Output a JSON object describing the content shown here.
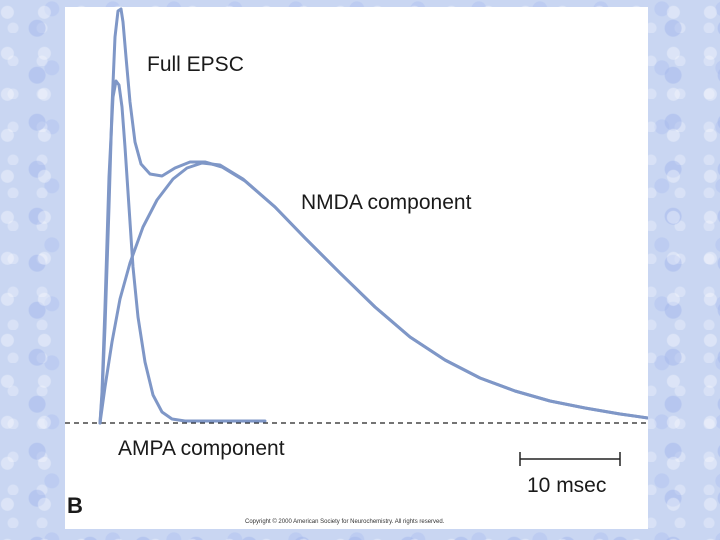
{
  "figure": {
    "panel_letter": "B",
    "labels": {
      "full_epsc": "Full EPSC",
      "nmda": "NMDA component",
      "ampa": "AMPA component"
    },
    "scale_bar": {
      "label": "10 msec"
    },
    "copyright": "Copyright © 2000 American Society for Neurochemistry. All rights reserved.",
    "colors": {
      "trace": "#7f97c7",
      "baseline": "#222222",
      "panel": "#ffffff",
      "background": "#c9d6f2"
    }
  }
}
